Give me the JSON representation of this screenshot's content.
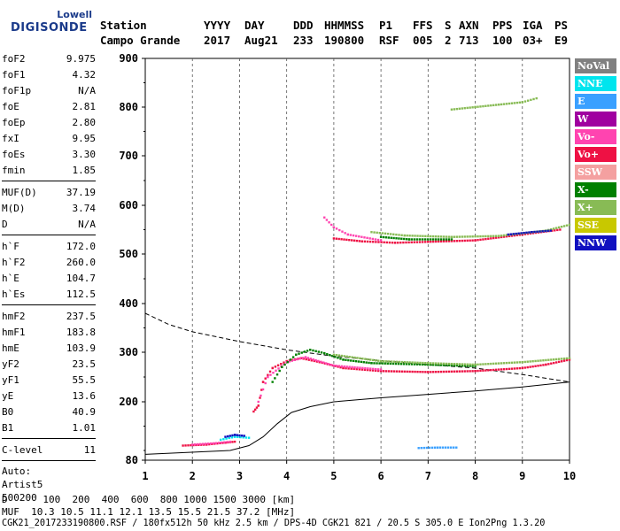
{
  "logo": {
    "line1": "Lowell",
    "line2": "DIGISONDE"
  },
  "header": {
    "labels": [
      "Station",
      "YYYY",
      "DAY",
      "DDD",
      "HHMMSS",
      "P1",
      "FFS",
      "S",
      "AXN",
      "PPS",
      "IGA",
      "PS"
    ],
    "values": [
      "Campo Grande",
      "2017",
      "Aug21",
      "233",
      "190800",
      "RSF",
      "005",
      "2",
      "713",
      "100",
      "03+",
      "E9"
    ]
  },
  "params": {
    "group1": [
      {
        "name": "foF2",
        "value": "9.975"
      },
      {
        "name": "foF1",
        "value": "4.32"
      },
      {
        "name": "foF1p",
        "value": "N/A"
      },
      {
        "name": "foE",
        "value": "2.81"
      },
      {
        "name": "foEp",
        "value": "2.80"
      },
      {
        "name": "fxI",
        "value": "9.95"
      },
      {
        "name": "foEs",
        "value": "3.30"
      },
      {
        "name": "fmin",
        "value": "1.85"
      }
    ],
    "group2": [
      {
        "name": "MUF(D)",
        "value": "37.19"
      },
      {
        "name": "M(D)",
        "value": "3.74"
      },
      {
        "name": "D",
        "value": "N/A"
      }
    ],
    "group3": [
      {
        "name": "h`F",
        "value": "172.0"
      },
      {
        "name": "h`F2",
        "value": "260.0"
      },
      {
        "name": "h`E",
        "value": "104.7"
      },
      {
        "name": "h`Es",
        "value": "112.5"
      }
    ],
    "group4": [
      {
        "name": "hmF2",
        "value": "237.5"
      },
      {
        "name": "hmF1",
        "value": "183.8"
      },
      {
        "name": "hmE",
        "value": "103.9"
      },
      {
        "name": "yF2",
        "value": "23.5"
      },
      {
        "name": "yF1",
        "value": "55.5"
      },
      {
        "name": "yE",
        "value": "13.6"
      },
      {
        "name": "B0",
        "value": "40.9"
      },
      {
        "name": "B1",
        "value": "1.01"
      }
    ],
    "group5": [
      {
        "name": "C-level",
        "value": "11"
      }
    ],
    "extra": [
      "Auto:",
      "Artist5",
      "500200"
    ]
  },
  "legend": [
    {
      "label": "NoVal",
      "bg": "#808080",
      "fg": "#ffffff"
    },
    {
      "label": "NNE",
      "bg": "#00e5ee",
      "fg": "#ffffff"
    },
    {
      "label": "E",
      "bg": "#3aa0ff",
      "fg": "#ffffff"
    },
    {
      "label": "W",
      "bg": "#a000a0",
      "fg": "#ffffff"
    },
    {
      "label": "Vo-",
      "bg": "#ff44b0",
      "fg": "#ffffff"
    },
    {
      "label": "Vo+",
      "bg": "#ee1144",
      "fg": "#ffffff"
    },
    {
      "label": "SSW",
      "bg": "#f4a0a0",
      "fg": "#ffffff"
    },
    {
      "label": "X-",
      "bg": "#008000",
      "fg": "#ffffff"
    },
    {
      "label": "X+",
      "bg": "#88bb55",
      "fg": "#ffffff"
    },
    {
      "label": "SSE",
      "bg": "#c8c800",
      "fg": "#ffffff"
    },
    {
      "label": "NNW",
      "bg": "#1010c0",
      "fg": "#ffffff"
    }
  ],
  "footer": {
    "d_line": "D      100  200  400  600  800 1000 1500 3000 [km]",
    "muf_line": "MUF  10.3 10.5 11.1 12.1 13.5 15.5 21.5 37.2 [MHz]",
    "file_line": "CGK21_2017233190800.RSF / 180fx512h 50 kHz 2.5 km / DPS-4D CGK21 821 / 20.5 S 305.0 E Ion2Png 1.3.20"
  },
  "chart_data": {
    "type": "scatter",
    "xlim": [
      1,
      10
    ],
    "ylim": [
      80,
      900
    ],
    "x_ticks": [
      1,
      2,
      3,
      4,
      5,
      6,
      7,
      8,
      9,
      10
    ],
    "y_ticks": [
      80,
      200,
      300,
      400,
      500,
      600,
      700,
      800,
      900
    ],
    "grid": "vertical-dashed",
    "series": [
      {
        "name": "Vo+",
        "color": "#ee1144",
        "segments": [
          [
            [
              1.8,
              110
            ],
            [
              2.3,
              112
            ],
            [
              2.7,
              116
            ],
            [
              2.9,
              118
            ]
          ],
          [
            [
              3.3,
              180
            ],
            [
              3.4,
              192
            ],
            [
              3.5,
              240
            ],
            [
              3.7,
              268
            ],
            [
              4.0,
              282
            ],
            [
              4.3,
              288
            ],
            [
              4.7,
              280
            ],
            [
              5.2,
              268
            ],
            [
              6,
              262
            ],
            [
              7,
              260
            ],
            [
              8,
              262
            ],
            [
              9,
              268
            ],
            [
              9.5,
              275
            ],
            [
              10,
              285
            ]
          ],
          [
            [
              5,
              532
            ],
            [
              5.6,
              526
            ],
            [
              6.3,
              523
            ],
            [
              7,
              525
            ],
            [
              8,
              528
            ],
            [
              9,
              540
            ],
            [
              9.8,
              550
            ]
          ]
        ]
      },
      {
        "name": "Vo-",
        "color": "#ff44b0",
        "segments": [
          [
            [
              2.0,
              112
            ],
            [
              2.5,
              115
            ],
            [
              2.8,
              118
            ]
          ],
          [
            [
              3.4,
              200
            ],
            [
              3.6,
              250
            ],
            [
              4.0,
              280
            ],
            [
              4.4,
              290
            ],
            [
              5.0,
              273
            ],
            [
              6,
              265
            ]
          ],
          [
            [
              4.8,
              575
            ],
            [
              5.0,
              555
            ],
            [
              5.3,
              540
            ],
            [
              6,
              528
            ]
          ]
        ]
      },
      {
        "name": "X-",
        "color": "#008000",
        "segments": [
          [
            [
              3.7,
              240
            ],
            [
              3.9,
              270
            ],
            [
              4.2,
              295
            ],
            [
              4.5,
              305
            ],
            [
              4.8,
              298
            ],
            [
              5.2,
              285
            ],
            [
              5.8,
              278
            ],
            [
              7,
              275
            ],
            [
              8,
              272
            ]
          ],
          [
            [
              6,
              535
            ],
            [
              6.6,
              530
            ],
            [
              7.5,
              530
            ]
          ]
        ]
      },
      {
        "name": "X+",
        "color": "#88bb55",
        "segments": [
          [
            [
              5.0,
              295
            ],
            [
              6,
              282
            ],
            [
              7,
              278
            ],
            [
              8,
              275
            ],
            [
              9,
              280
            ],
            [
              10,
              288
            ]
          ],
          [
            [
              5.8,
              545
            ],
            [
              6.5,
              538
            ],
            [
              7.5,
              535
            ],
            [
              8.5,
              537
            ],
            [
              9.5,
              548
            ],
            [
              10,
              560
            ]
          ],
          [
            [
              7.5,
              795
            ],
            [
              8,
              800
            ],
            [
              8.5,
              805
            ],
            [
              9,
              810
            ],
            [
              9.3,
              818
            ]
          ]
        ]
      },
      {
        "name": "NNE",
        "color": "#00e5ee",
        "segments": [
          [
            [
              2.6,
              122
            ],
            [
              2.9,
              128
            ],
            [
              3.2,
              126
            ]
          ]
        ]
      },
      {
        "name": "E",
        "color": "#3aa0ff",
        "segments": [
          [
            [
              6.8,
              105
            ],
            [
              7.2,
              106
            ],
            [
              7.6,
              106
            ]
          ]
        ]
      },
      {
        "name": "NNW",
        "color": "#1010c0",
        "segments": [
          [
            [
              2.7,
              128
            ],
            [
              2.9,
              132
            ],
            [
              3.1,
              130
            ]
          ],
          [
            [
              8.7,
              540
            ],
            [
              9.2,
              545
            ],
            [
              9.6,
              548
            ]
          ]
        ]
      }
    ],
    "profile_solid": [
      [
        1.0,
        92
      ],
      [
        2.8,
        100
      ],
      [
        3.2,
        110
      ],
      [
        3.5,
        128
      ],
      [
        3.8,
        155
      ],
      [
        4.1,
        178
      ],
      [
        4.5,
        190
      ],
      [
        5,
        200
      ],
      [
        6,
        208
      ],
      [
        7,
        215
      ],
      [
        8,
        222
      ],
      [
        9,
        230
      ],
      [
        10,
        240
      ]
    ],
    "muf_dashed": [
      [
        1.0,
        380
      ],
      [
        1.5,
        357
      ],
      [
        2,
        342
      ],
      [
        3,
        322
      ],
      [
        4,
        305
      ],
      [
        5,
        292
      ],
      [
        6,
        283
      ],
      [
        7,
        275
      ],
      [
        8,
        268
      ],
      [
        9,
        255
      ],
      [
        10,
        240
      ]
    ]
  }
}
